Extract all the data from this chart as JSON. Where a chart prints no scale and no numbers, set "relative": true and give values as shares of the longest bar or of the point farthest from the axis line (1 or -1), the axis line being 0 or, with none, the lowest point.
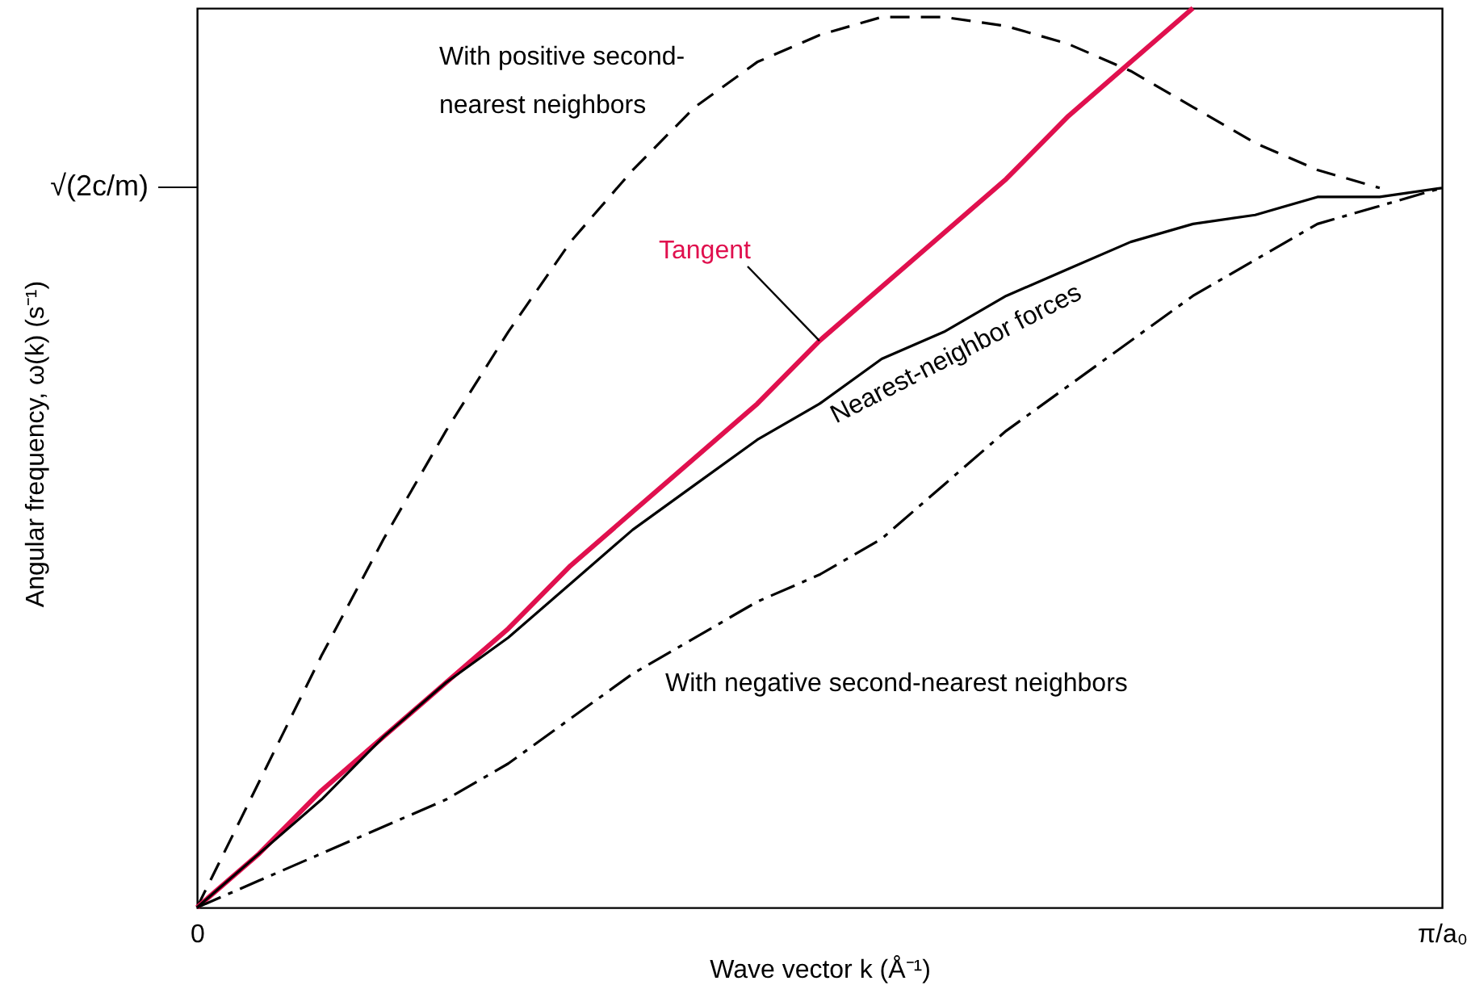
{
  "chart_data": {
    "type": "line",
    "relative": true,
    "xlabel": "Wave vector k  (Å⁻¹)",
    "categories": [
      "0",
      null,
      null,
      null,
      null,
      null,
      null,
      null,
      null,
      null,
      null,
      null,
      null,
      null,
      null,
      null,
      null,
      null,
      null,
      null,
      "π/a₀"
    ],
    "annotations": [
      "√(2c/m)",
      "Angular frequency, ω(k)  (s⁻¹)"
    ],
    "grid": false,
    "legend": false,
    "marker": "none",
    "series": [
      {
        "name": "With positive second-nearest neighbors",
        "color": "#000000",
        "line_style": "dashed",
        "values": [
          0,
          0.14,
          0.28,
          0.41,
          0.53,
          0.64,
          0.74,
          0.82,
          0.89,
          0.94,
          0.97,
          0.99,
          0.99,
          0.98,
          0.96,
          0.93,
          0.89,
          0.85,
          0.82,
          0.8,
          null
        ]
      },
      {
        "name": "Tangent",
        "color": "#e0104e",
        "line_style": "solid",
        "values": [
          0,
          0.06,
          0.13,
          0.19,
          0.25,
          0.31,
          0.38,
          0.44,
          0.5,
          0.56,
          0.63,
          0.69,
          0.75,
          0.81,
          0.88,
          0.94,
          1,
          null,
          null,
          null,
          null
        ]
      },
      {
        "name": "Nearest-neighbor forces",
        "color": "#000000",
        "line_style": "solid",
        "values": [
          0,
          0.06,
          0.12,
          0.19,
          0.25,
          0.3,
          0.36,
          0.42,
          0.47,
          0.52,
          0.56,
          0.61,
          0.64,
          0.68,
          0.71,
          0.74,
          0.76,
          0.77,
          0.79,
          0.79,
          0.8
        ]
      },
      {
        "name": "With negative second-nearest neighbors",
        "color": "#000000",
        "line_style": "dashdot",
        "values": [
          0,
          0.03,
          0.06,
          0.09,
          0.12,
          0.16,
          0.21,
          0.26,
          0.3,
          0.34,
          0.37,
          0.41,
          0.47,
          0.53,
          0.58,
          0.63,
          0.68,
          0.72,
          0.76,
          0.78,
          0.8
        ]
      }
    ]
  }
}
